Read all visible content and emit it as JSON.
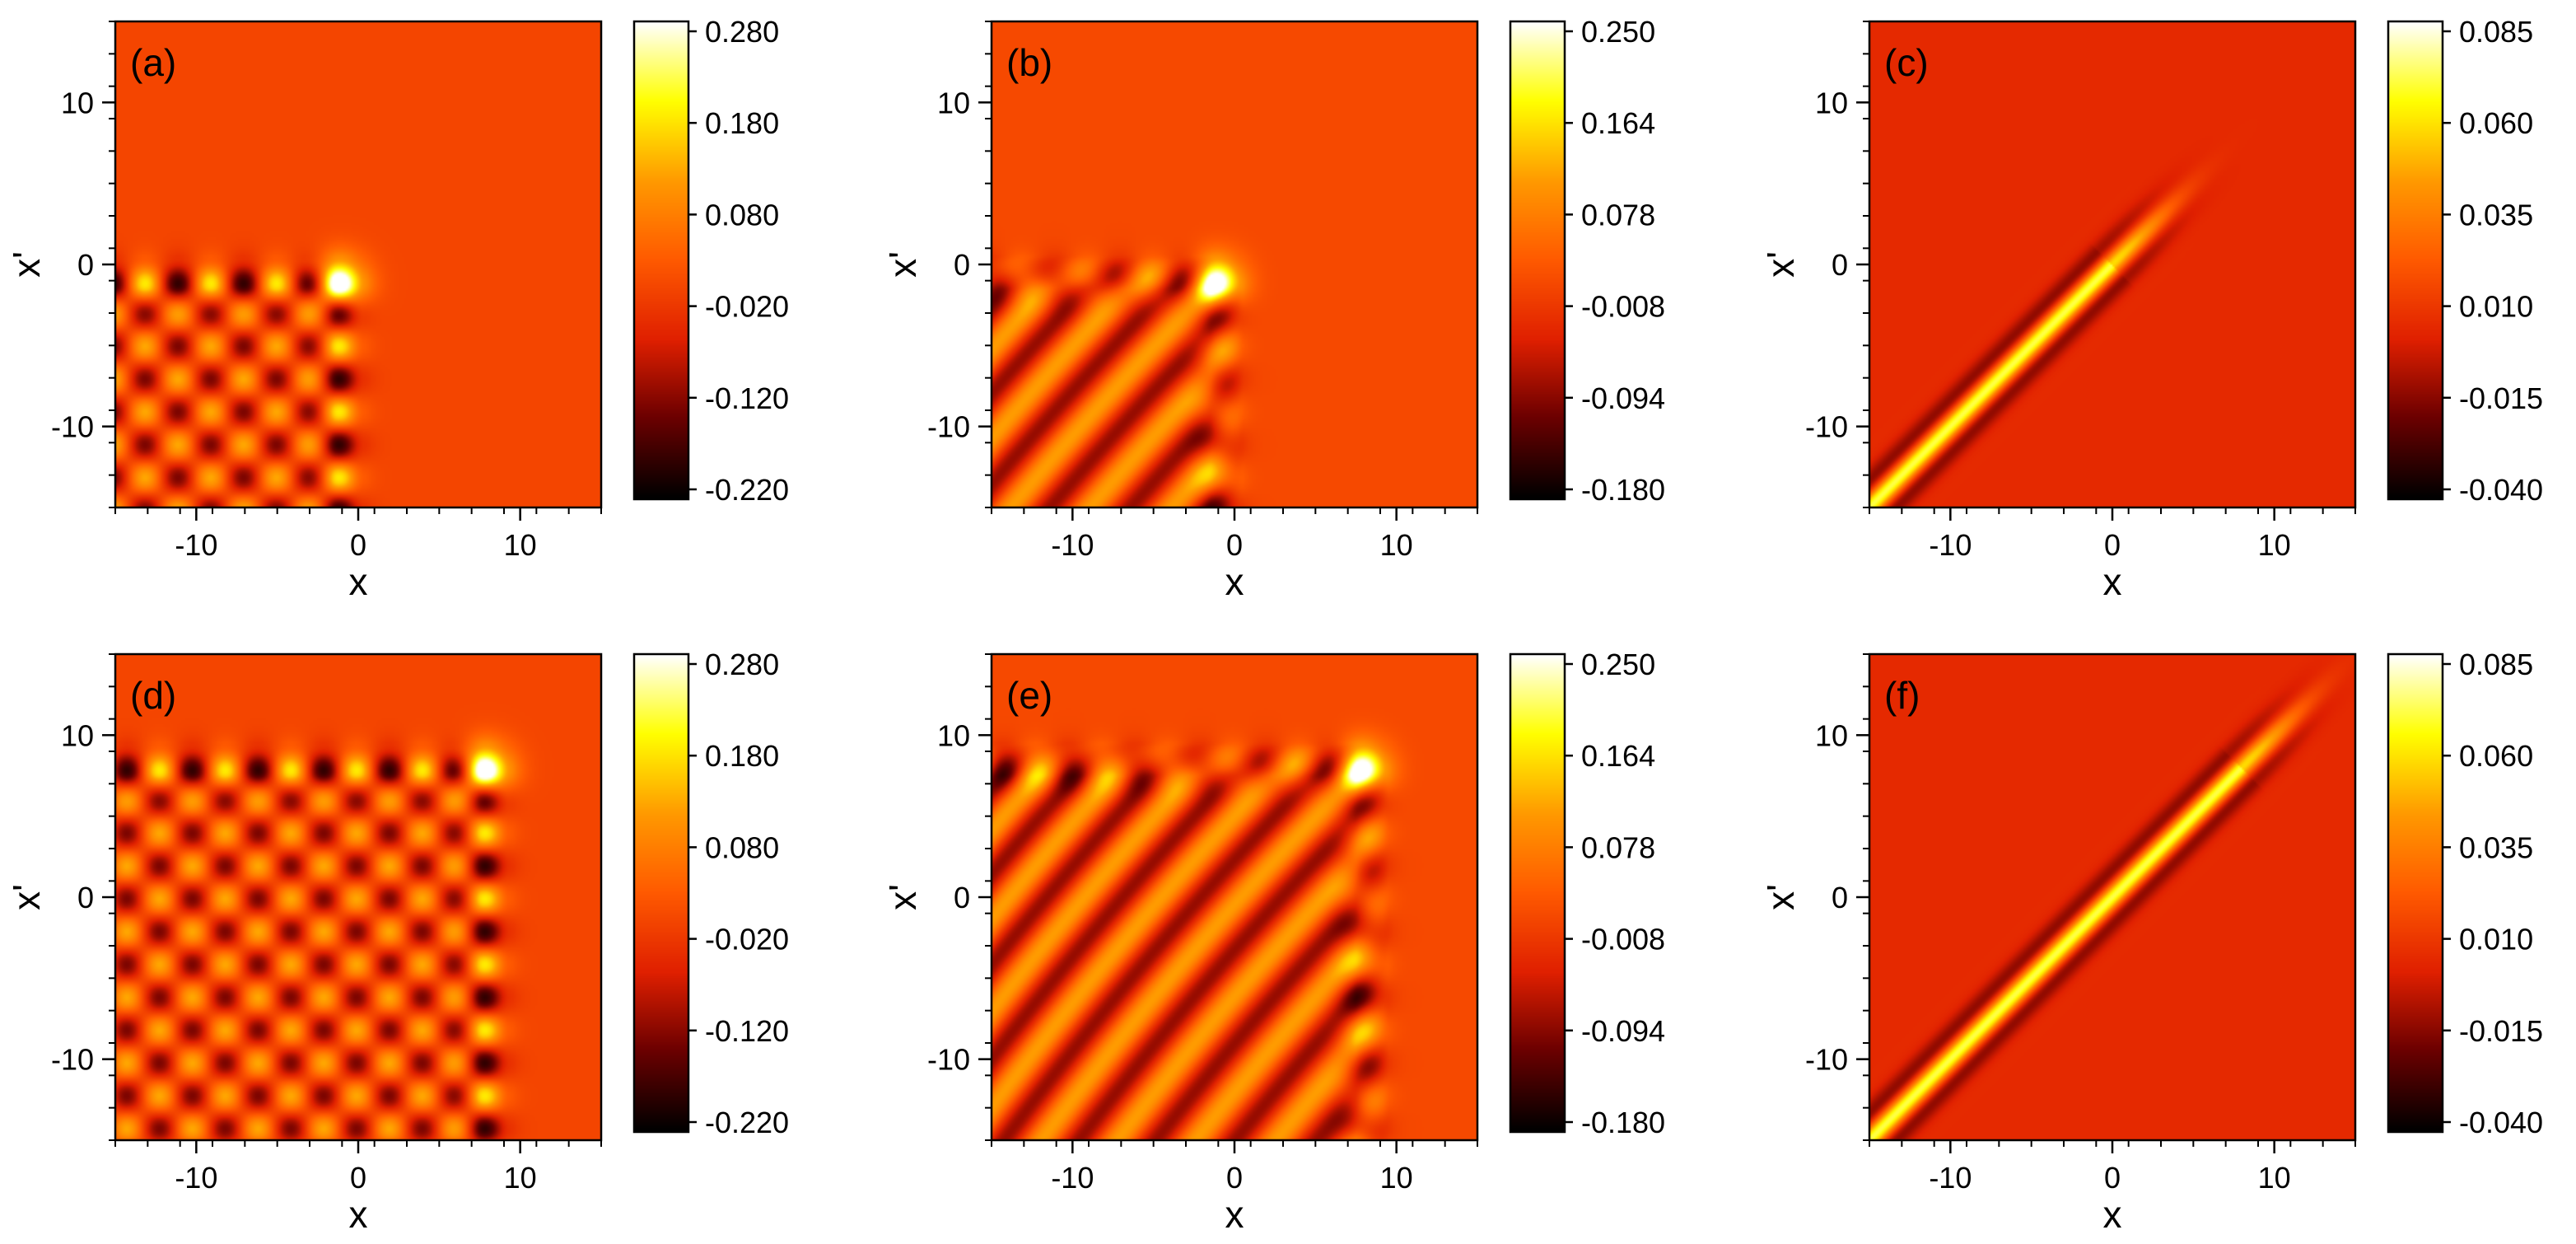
{
  "chart_data": [
    {
      "type": "heatmap",
      "panel_label": "(a)",
      "xlabel": "x",
      "ylabel": "x'",
      "xlim": [
        -15,
        15
      ],
      "ylim": [
        -15,
        15
      ],
      "xticks": [
        -10,
        0,
        10
      ],
      "yticks": [
        -10,
        0,
        10
      ],
      "colorbar": {
        "ticks": [
          "0.280",
          "0.180",
          "0.080",
          "-0.020",
          "-0.120",
          "-0.220"
        ],
        "range": [
          -0.22,
          0.28
        ]
      },
      "pattern": {
        "kind": "checker",
        "center": [
          -1,
          -1
        ]
      }
    },
    {
      "type": "heatmap",
      "panel_label": "(b)",
      "xlabel": "x",
      "ylabel": "x'",
      "xlim": [
        -15,
        15
      ],
      "ylim": [
        -15,
        15
      ],
      "xticks": [
        -10,
        0,
        10
      ],
      "yticks": [
        -10,
        0,
        10
      ],
      "colorbar": {
        "ticks": [
          "0.250",
          "0.164",
          "0.078",
          "-0.008",
          "-0.094",
          "-0.180"
        ],
        "range": [
          -0.18,
          0.25
        ]
      },
      "pattern": {
        "kind": "fringes",
        "center": [
          -1,
          -1
        ]
      }
    },
    {
      "type": "heatmap",
      "panel_label": "(c)",
      "xlabel": "x",
      "ylabel": "x'",
      "xlim": [
        -15,
        15
      ],
      "ylim": [
        -15,
        15
      ],
      "xticks": [
        -10,
        0,
        10
      ],
      "yticks": [
        -10,
        0,
        10
      ],
      "colorbar": {
        "ticks": [
          "0.085",
          "0.060",
          "0.035",
          "0.010",
          "-0.015",
          "-0.040"
        ],
        "range": [
          -0.04,
          0.085
        ]
      },
      "pattern": {
        "kind": "diagonal",
        "center": [
          0,
          0
        ]
      }
    },
    {
      "type": "heatmap",
      "panel_label": "(d)",
      "xlabel": "x",
      "ylabel": "x'",
      "xlim": [
        -15,
        15
      ],
      "ylim": [
        -15,
        15
      ],
      "xticks": [
        -10,
        0,
        10
      ],
      "yticks": [
        -10,
        0,
        10
      ],
      "colorbar": {
        "ticks": [
          "0.280",
          "0.180",
          "0.080",
          "-0.020",
          "-0.120",
          "-0.220"
        ],
        "range": [
          -0.22,
          0.28
        ]
      },
      "pattern": {
        "kind": "checker",
        "center": [
          8,
          8
        ]
      }
    },
    {
      "type": "heatmap",
      "panel_label": "(e)",
      "xlabel": "x",
      "ylabel": "x'",
      "xlim": [
        -15,
        15
      ],
      "ylim": [
        -15,
        15
      ],
      "xticks": [
        -10,
        0,
        10
      ],
      "yticks": [
        -10,
        0,
        10
      ],
      "colorbar": {
        "ticks": [
          "0.250",
          "0.164",
          "0.078",
          "-0.008",
          "-0.094",
          "-0.180"
        ],
        "range": [
          -0.18,
          0.25
        ]
      },
      "pattern": {
        "kind": "fringes",
        "center": [
          8,
          8
        ]
      }
    },
    {
      "type": "heatmap",
      "panel_label": "(f)",
      "xlabel": "x",
      "ylabel": "x'",
      "xlim": [
        -15,
        15
      ],
      "ylim": [
        -15,
        15
      ],
      "xticks": [
        -10,
        0,
        10
      ],
      "yticks": [
        -10,
        0,
        10
      ],
      "colorbar": {
        "ticks": [
          "0.085",
          "0.060",
          "0.035",
          "0.010",
          "-0.015",
          "-0.040"
        ],
        "range": [
          -0.04,
          0.085
        ]
      },
      "pattern": {
        "kind": "diagonal",
        "center": [
          8,
          8
        ]
      }
    }
  ],
  "colormap": [
    "#000000",
    "#6a0000",
    "#e02000",
    "#ff5a00",
    "#ff9a00",
    "#ffff00",
    "#ffffff"
  ]
}
